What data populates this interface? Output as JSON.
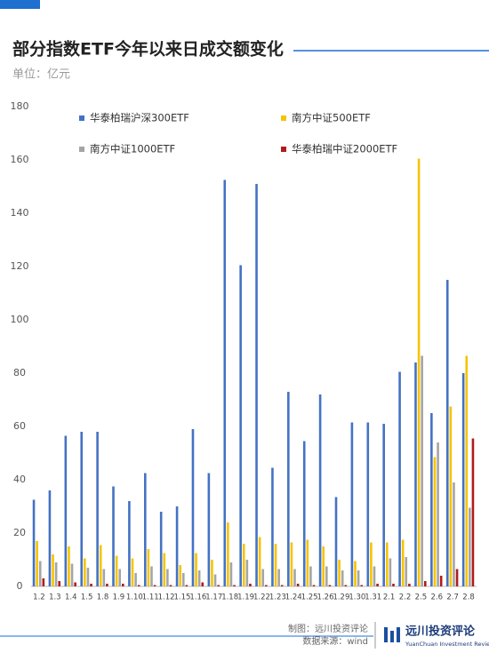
{
  "chart_data": {
    "type": "bar",
    "title": "部分指数ETF今年以来日成交额变化",
    "subtitle": "单位：亿元",
    "categories": [
      "1.2",
      "1.3",
      "1.4",
      "1.5",
      "1.8",
      "1.9",
      "1.10",
      "1.11",
      "1.12",
      "1.15",
      "1.16",
      "1.17",
      "1.18",
      "1.19",
      "1.22",
      "1.23",
      "1.24",
      "1.25",
      "1.26",
      "1.29",
      "1.30",
      "1.31",
      "2.1",
      "2.2",
      "2.5",
      "2.6",
      "2.7",
      "2.8"
    ],
    "series": [
      {
        "name": "华泰柏瑞沪深300ETF",
        "color": "#4472c4",
        "values": [
          32.5,
          36,
          56.5,
          58,
          58,
          37.5,
          32,
          42.5,
          28,
          30,
          59,
          42.5,
          152.5,
          120.5,
          151,
          44.5,
          73,
          54.5,
          72,
          33.5,
          61.5,
          61.5,
          61,
          80.5,
          84,
          65,
          115,
          80
        ]
      },
      {
        "name": "南方中证500ETF",
        "color": "#f5c400",
        "values": [
          17,
          12,
          15,
          10.5,
          15.5,
          11.5,
          10.5,
          14,
          12.5,
          8,
          12.5,
          10,
          24,
          16,
          18.5,
          16,
          16.5,
          17.5,
          15,
          10,
          9.5,
          16.5,
          16.5,
          17.5,
          160.5,
          48.5,
          67.5,
          86.5
        ]
      },
      {
        "name": "南方中证1000ETF",
        "color": "#a5a5a5",
        "values": [
          9.5,
          9,
          8.5,
          7,
          6.5,
          6.5,
          5,
          7.5,
          6.5,
          5,
          6,
          4.5,
          9,
          10,
          6.5,
          6.5,
          6.5,
          7.5,
          7.5,
          6,
          6,
          7.5,
          10.5,
          11,
          86.5,
          54,
          39,
          29.5
        ]
      },
      {
        "name": "华泰柏瑞中证2000ETF",
        "color": "#b01c1c",
        "values": [
          3,
          2,
          1.5,
          1,
          1,
          1,
          0.5,
          0.5,
          0.5,
          0.5,
          1.5,
          0.5,
          0.5,
          1,
          0.5,
          0.5,
          1,
          0.5,
          0.5,
          0.5,
          0.5,
          1,
          1,
          1,
          2,
          4,
          6.5,
          55.5
        ]
      }
    ],
    "ylim": [
      0,
      180
    ],
    "yticks": [
      0,
      20,
      40,
      60,
      80,
      100,
      120,
      140,
      160,
      180
    ],
    "grid": false,
    "legend": "top",
    "footer": {
      "maker": "制图：远川投资评论",
      "source": "数据来源：wind",
      "brand": "远川投资评论",
      "brand_en": "YuanChuan Investment Review"
    }
  }
}
